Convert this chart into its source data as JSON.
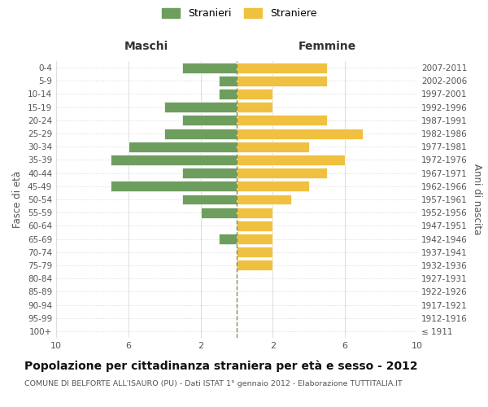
{
  "age_groups": [
    "100+",
    "95-99",
    "90-94",
    "85-89",
    "80-84",
    "75-79",
    "70-74",
    "65-69",
    "60-64",
    "55-59",
    "50-54",
    "45-49",
    "40-44",
    "35-39",
    "30-34",
    "25-29",
    "20-24",
    "15-19",
    "10-14",
    "5-9",
    "0-4"
  ],
  "birth_years": [
    "≤ 1911",
    "1912-1916",
    "1917-1921",
    "1922-1926",
    "1927-1931",
    "1932-1936",
    "1937-1941",
    "1942-1946",
    "1947-1951",
    "1952-1956",
    "1957-1961",
    "1962-1966",
    "1967-1971",
    "1972-1976",
    "1977-1981",
    "1982-1986",
    "1987-1991",
    "1992-1996",
    "1997-2001",
    "2002-2006",
    "2007-2011"
  ],
  "males": [
    0,
    0,
    0,
    0,
    0,
    0,
    0,
    1,
    0,
    2,
    3,
    7,
    3,
    7,
    6,
    4,
    3,
    4,
    1,
    1,
    3
  ],
  "females": [
    0,
    0,
    0,
    0,
    0,
    2,
    2,
    2,
    2,
    2,
    3,
    4,
    5,
    6,
    4,
    7,
    5,
    2,
    2,
    5,
    5
  ],
  "male_color": "#6e9e5e",
  "female_color": "#f0c040",
  "center_line_color": "#8b8b4e",
  "grid_color": "#d0d0d0",
  "background_color": "#ffffff",
  "title": "Popolazione per cittadinanza straniera per età e sesso - 2012",
  "subtitle": "COMUNE DI BELFORTE ALL'ISAURO (PU) - Dati ISTAT 1° gennaio 2012 - Elaborazione TUTTITALIA.IT",
  "xlabel_left": "Maschi",
  "xlabel_right": "Femmine",
  "legend_males": "Stranieri",
  "legend_females": "Straniere",
  "ylabel_left": "Fasce di età",
  "ylabel_right": "Anni di nascita",
  "xlim": 10
}
